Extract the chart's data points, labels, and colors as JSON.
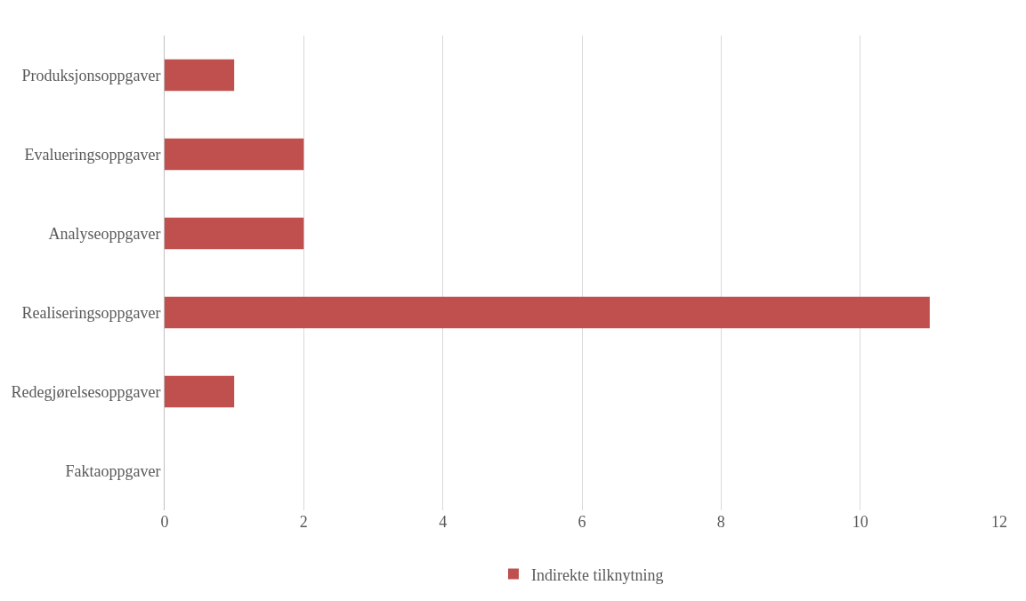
{
  "chart_data": {
    "type": "bar",
    "orientation": "horizontal",
    "categories": [
      "Produksjonsoppgaver",
      "Evalueringsoppgaver",
      "Analyseoppgaver",
      "Realiseringsoppgaver",
      "Redegjørelsesoppgaver",
      "Faktaoppgaver"
    ],
    "series": [
      {
        "name": "Indirekte tilknytning",
        "color": "#c0504d",
        "values": [
          1,
          2,
          2,
          11,
          1,
          0
        ]
      }
    ],
    "xlim": [
      0,
      12
    ],
    "xticks": [
      0,
      2,
      4,
      6,
      8,
      10,
      12
    ],
    "grid": "x",
    "legend": "bottom"
  }
}
